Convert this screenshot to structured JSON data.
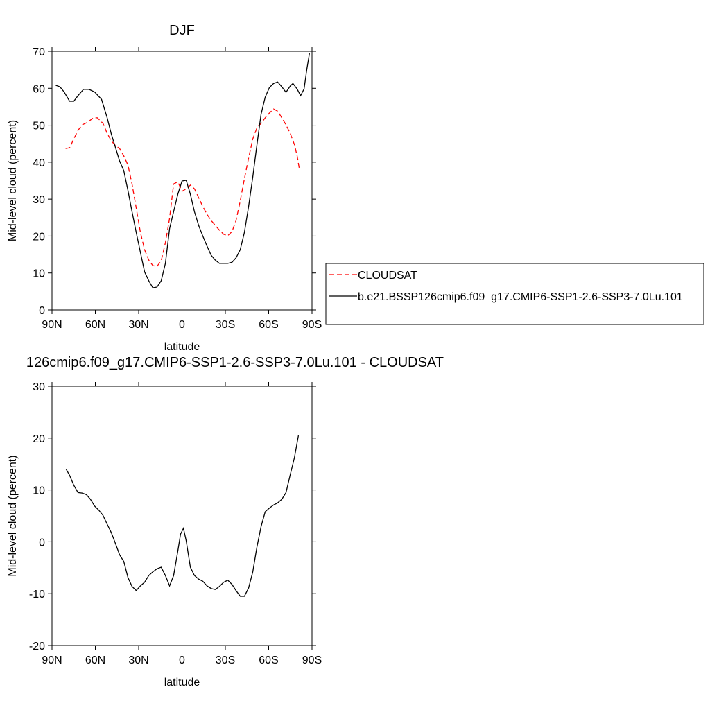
{
  "chart_data": [
    {
      "type": "line",
      "title": "DJF",
      "x_label": "latitude",
      "y_label": "Mid-level cloud (percent)",
      "xlim": [
        90,
        -90
      ],
      "xticks": [
        {
          "value": 90,
          "label": "90N"
        },
        {
          "value": 60,
          "label": "60N"
        },
        {
          "value": 30,
          "label": "30N"
        },
        0,
        {
          "value": -30,
          "label": "30S"
        },
        {
          "value": -60,
          "label": "60S"
        },
        {
          "value": -90,
          "label": "90S"
        }
      ],
      "ylim": [
        0,
        70
      ],
      "yticks": [
        0,
        10,
        20,
        30,
        40,
        50,
        60,
        70
      ],
      "legend": "right",
      "series": [
        {
          "name": "CLOUDSAT",
          "color": "#ff0000",
          "line_style": "dashed",
          "x": [
            80.6,
            77.8,
            74.9,
            72,
            69.1,
            65.3,
            61.4,
            58.6,
            54.7,
            51.8,
            49,
            46.1,
            43.2,
            40.3,
            37.4,
            34.6,
            31.7,
            28.8,
            25.9,
            23,
            20.2,
            17.3,
            14.4,
            11.5,
            8.6,
            5.8,
            2.9,
            0,
            -2.9,
            -5.8,
            -8.6,
            -11.5,
            -14.4,
            -17.3,
            -20.2,
            -23,
            -25.9,
            -28.8,
            -31.7,
            -34.6,
            -37.4,
            -40.3,
            -43.2,
            -46.1,
            -49,
            -51.8,
            -54.7,
            -57.6,
            -60.5,
            -63.4,
            -66.2,
            -69.1,
            -72,
            -74.9,
            -77.8,
            -79.7,
            -81.1
          ],
          "values": [
            43.7,
            43.9,
            46.3,
            48.6,
            50.1,
            50.8,
            52,
            52,
            50.5,
            47.8,
            45.8,
            44.5,
            43.7,
            41.7,
            39.2,
            34.1,
            27.6,
            21,
            16.3,
            13.5,
            12,
            11.8,
            13.3,
            18.2,
            24.8,
            34.1,
            34.7,
            32.1,
            32.8,
            33.8,
            32.8,
            30.4,
            28,
            25.9,
            24.2,
            22.9,
            21.6,
            20.5,
            20.1,
            21.2,
            24.2,
            29.5,
            35.5,
            41.1,
            46.3,
            49.2,
            50.5,
            52,
            53.3,
            54.4,
            53.8,
            52,
            50.1,
            47.8,
            44.8,
            41.7,
            38.5
          ]
        },
        {
          "name": "b.e21.BSSP126cmip6.f09_g17.CMIP6-SSP1-2.6-SSP3-7.0Lu.101",
          "color": "#000000",
          "line_style": "solid",
          "x": [
            87.4,
            84.5,
            81.6,
            77.8,
            74.9,
            72,
            68.2,
            64.3,
            60.5,
            55.7,
            51.8,
            49,
            46,
            43.2,
            40.3,
            37.4,
            34.6,
            31.7,
            28.8,
            25.9,
            23,
            20.2,
            17.3,
            14.4,
            11.5,
            8.6,
            5.8,
            2.9,
            0,
            -2.9,
            -5.8,
            -8.6,
            -11.5,
            -14.4,
            -17.3,
            -20.2,
            -23,
            -25.9,
            -28.8,
            -31.7,
            -34.6,
            -37.4,
            -40.3,
            -43.2,
            -46.1,
            -49,
            -51.8,
            -54.7,
            -57.6,
            -60.5,
            -63.4,
            -66.2,
            -69.1,
            -72,
            -74.9,
            -76.8,
            -79.7,
            -82.1,
            -84.5,
            -86.4,
            -88.3
          ],
          "values": [
            60.8,
            60.4,
            59,
            56.5,
            56.5,
            58,
            59.7,
            59.7,
            59,
            57,
            52,
            47.7,
            43.9,
            40.3,
            37.7,
            32.3,
            26.6,
            21,
            15.6,
            10.3,
            7.9,
            6,
            6.2,
            7.9,
            12.6,
            22,
            26.6,
            31.3,
            34.9,
            35.1,
            31.3,
            26.6,
            22.9,
            20,
            17.3,
            14.8,
            13.5,
            12.6,
            12.6,
            12.6,
            12.9,
            14.1,
            16.3,
            21,
            28,
            36,
            44.5,
            52.9,
            57.6,
            60.2,
            61.3,
            61.7,
            60.4,
            58.9,
            60.6,
            61.3,
            59.8,
            58,
            59.8,
            65.1,
            69.6
          ]
        }
      ]
    },
    {
      "type": "line",
      "title": "126cmip6.f09_g17.CMIP6-SSP1-2.6-SSP3-7.0Lu.101 - CLOUDSAT",
      "x_label": "latitude",
      "y_label": "Mid-level cloud (percent)",
      "xlim": [
        90,
        -90
      ],
      "xticks": [
        {
          "value": 90,
          "label": "90N"
        },
        {
          "value": 60,
          "label": "60N"
        },
        {
          "value": 30,
          "label": "30N"
        },
        0,
        {
          "value": -30,
          "label": "30S"
        },
        {
          "value": -60,
          "label": "60S"
        },
        {
          "value": -90,
          "label": "90S"
        }
      ],
      "ylim": [
        -20,
        30
      ],
      "yticks": [
        -20,
        -10,
        0,
        10,
        20,
        30
      ],
      "series": [
        {
          "color": "#000000",
          "line_style": "solid",
          "x": [
            80.2,
            77.8,
            74.9,
            72,
            69.1,
            66.2,
            63.4,
            60.5,
            57.6,
            54.7,
            51.8,
            49,
            46.1,
            43.2,
            40.3,
            37.4,
            34.6,
            31.7,
            28.8,
            25.9,
            23,
            20.2,
            17.3,
            14.4,
            11.5,
            8.6,
            5.8,
            2.9,
            1,
            -1,
            -2.9,
            -5.8,
            -8.6,
            -11.5,
            -14.4,
            -17.3,
            -20.2,
            -23,
            -25.9,
            -28.8,
            -31.7,
            -34.6,
            -37.4,
            -40.3,
            -43.2,
            -46.1,
            -49,
            -51.8,
            -54.7,
            -57.6,
            -60.5,
            -63.4,
            -66.2,
            -69.1,
            -72,
            -74.9,
            -77.8,
            -80.6
          ],
          "values": [
            14,
            12.8,
            10.9,
            9.5,
            9.4,
            9.1,
            8.2,
            6.9,
            6.1,
            5.1,
            3.4,
            1.8,
            -0.3,
            -2.5,
            -3.8,
            -6.9,
            -8.6,
            -9.4,
            -8.5,
            -7.8,
            -6.5,
            -5.8,
            -5.2,
            -4.9,
            -6.5,
            -8.5,
            -6.5,
            -1.8,
            1.5,
            2.6,
            0.2,
            -4.9,
            -6.5,
            -7.2,
            -7.6,
            -8.5,
            -9,
            -9.2,
            -8.6,
            -7.8,
            -7.4,
            -8.2,
            -9.4,
            -10.5,
            -10.5,
            -8.9,
            -5.8,
            -1.1,
            2.9,
            5.8,
            6.5,
            7.1,
            7.5,
            8.2,
            9.5,
            12.9,
            16.2,
            20.5
          ]
        }
      ]
    }
  ]
}
